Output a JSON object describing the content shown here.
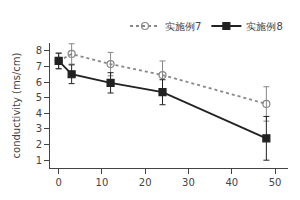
{
  "chart_data": {
    "type": "line",
    "y_label": "conductivity (ms/cm)",
    "x": [
      0,
      3,
      12,
      24,
      48
    ],
    "series": [
      {
        "name": "实施例7",
        "color": "#888888",
        "marker": "circle-open",
        "line_style": "dotted",
        "values": [
          7.35,
          7.8,
          7.15,
          6.45,
          4.6
        ],
        "yerr": [
          0.5,
          0.65,
          0.75,
          0.9,
          1.1
        ]
      },
      {
        "name": "实施例8",
        "color": "#222222",
        "marker": "square",
        "line_style": "solid",
        "values": [
          7.35,
          6.5,
          5.95,
          5.35,
          2.4
        ],
        "yerr": [
          0.5,
          0.6,
          0.65,
          0.8,
          1.4
        ]
      }
    ],
    "xlim": [
      -2,
      53
    ],
    "xticks": [
      0,
      10,
      20,
      30,
      40,
      50
    ],
    "ylim": [
      0.5,
      8.5
    ],
    "yticks": [
      1,
      2,
      3,
      4,
      5,
      6,
      7,
      8
    ],
    "grid": false,
    "legend": "upper right"
  }
}
